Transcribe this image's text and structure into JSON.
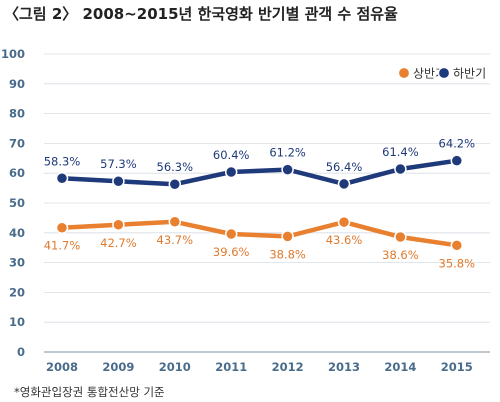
{
  "figure": {
    "title": "〈그림 2〉 2008~2015년 한국영화 반기별 관객 수 점유율",
    "source_note": "*영화관입장권 통합전산망 기준"
  },
  "chart_data": {
    "type": "line",
    "categories": [
      "2008",
      "2009",
      "2010",
      "2011",
      "2012",
      "2013",
      "2014",
      "2015"
    ],
    "ylim": [
      0,
      100
    ],
    "yticks": [
      0,
      10,
      20,
      30,
      40,
      50,
      60,
      70,
      80,
      90,
      100
    ],
    "grid": true,
    "legend_position": "top-right",
    "series": [
      {
        "name": "상반기",
        "color": "#e8802f",
        "values": [
          41.7,
          42.7,
          43.7,
          39.6,
          38.8,
          43.6,
          38.6,
          35.8
        ],
        "labels": [
          "41.7%",
          "42.7%",
          "43.7%",
          "39.6%",
          "38.8%",
          "43.6%",
          "38.6%",
          "35.8%"
        ]
      },
      {
        "name": "하반기",
        "color": "#1f3a7a",
        "values": [
          58.3,
          57.3,
          56.3,
          60.4,
          61.2,
          56.4,
          61.4,
          64.2
        ],
        "labels": [
          "58.3%",
          "57.3%",
          "56.3%",
          "60.4%",
          "61.2%",
          "56.4%",
          "61.4%",
          "64.2%"
        ]
      }
    ]
  }
}
